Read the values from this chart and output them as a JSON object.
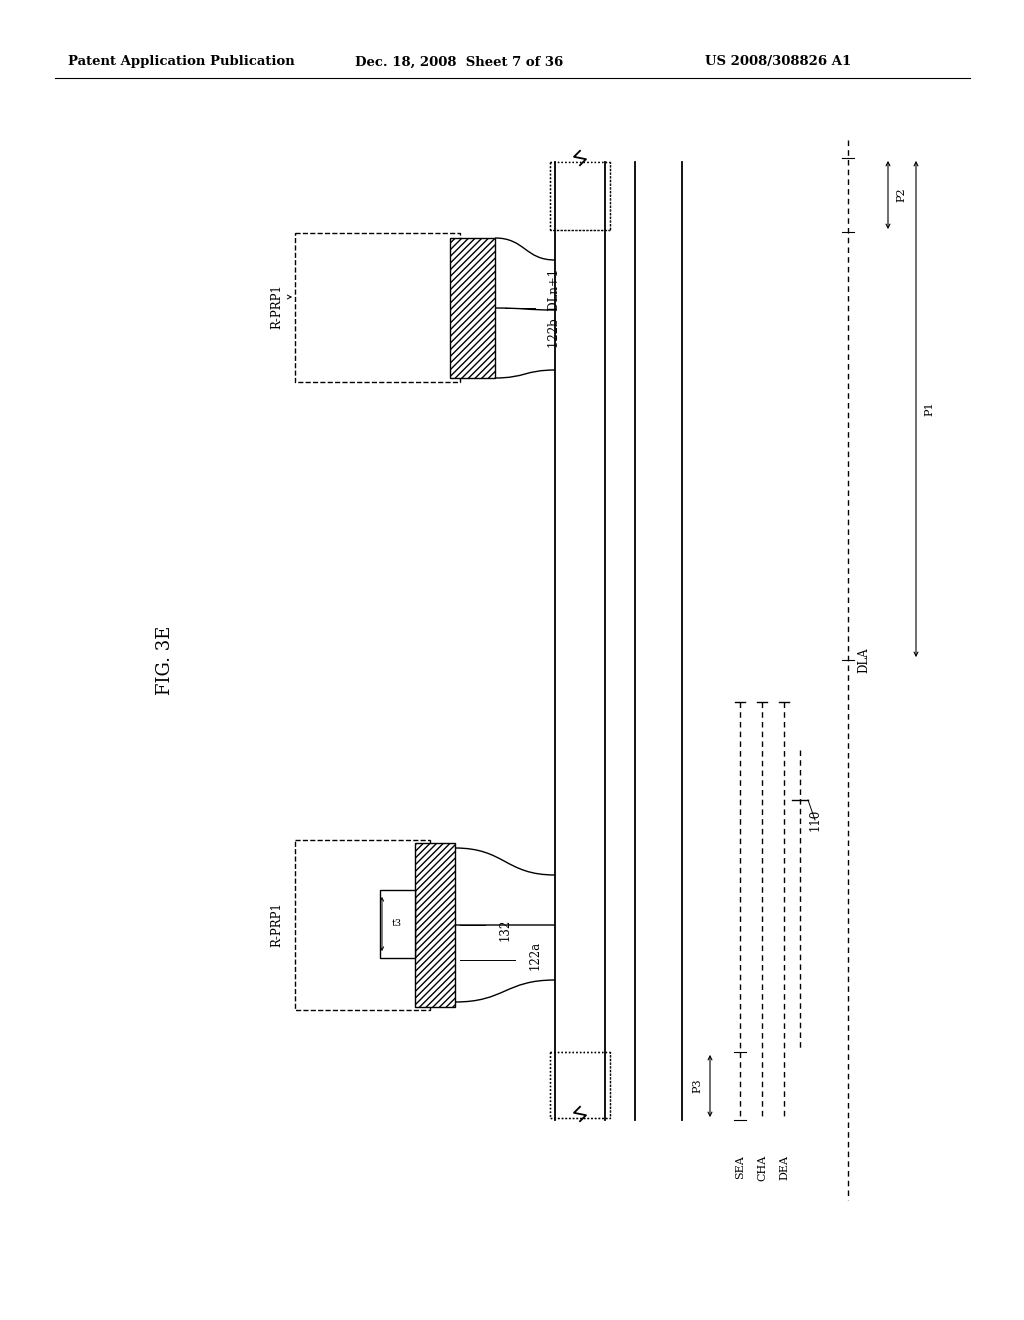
{
  "bg_color": "#ffffff",
  "header_left": "Patent Application Publication",
  "header_mid": "Dec. 18, 2008  Sheet 7 of 36",
  "header_right": "US 2008/308826 A1",
  "fig_label": "FIG. 3E",
  "colors": {
    "black": "#000000",
    "white": "#ffffff",
    "gray_hatch": "#444444"
  },
  "labels": {
    "R_PRP1": "R-PRP1",
    "label_122b": "122b",
    "label_DLn1": "DLn+1",
    "label_DLA": "DLA",
    "label_P2": "P2",
    "label_P1": "P1",
    "label_P3": "P3",
    "label_110": "110",
    "label_DEA": "DEA",
    "label_CHA": "CHA",
    "label_SEA": "SEA",
    "label_132": "132",
    "label_122a": "122a",
    "label_13": "t3"
  }
}
